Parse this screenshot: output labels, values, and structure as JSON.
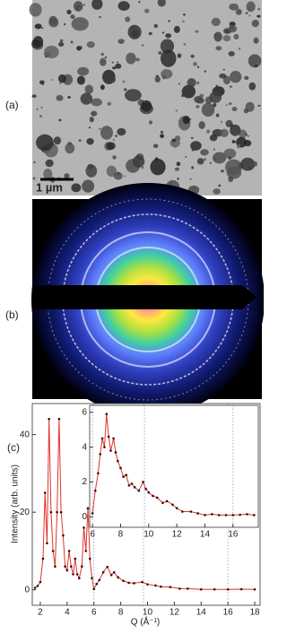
{
  "panels": {
    "a": {
      "label": "(a)",
      "scale_bar": "1 µm"
    },
    "b": {
      "label": "(b)"
    },
    "c": {
      "label": "(c)"
    }
  },
  "chart_data": {
    "type": "line",
    "x_label": "Q (Å⁻¹)",
    "y_label": "Intensity (arb. units)",
    "xlim": [
      1.4,
      18.4
    ],
    "xticks": [
      2,
      4,
      6,
      8,
      10,
      12,
      14,
      16,
      18
    ],
    "ylim": [
      -4,
      48
    ],
    "yticks": [
      0,
      20,
      40
    ],
    "color": "#e0332b",
    "marker_color": "#3a0c0c",
    "vlines": [
      6,
      9.7,
      16
    ],
    "vline_color": "#7a8fd6",
    "x": [
      1.6,
      1.8,
      2.0,
      2.2,
      2.35,
      2.5,
      2.65,
      2.8,
      2.95,
      3.1,
      3.25,
      3.4,
      3.55,
      3.7,
      3.85,
      4.0,
      4.15,
      4.3,
      4.45,
      4.6,
      4.75,
      4.9,
      5.1,
      5.25,
      5.4,
      5.55,
      5.7,
      5.85,
      6.0,
      6.2,
      6.4,
      6.7,
      7.0,
      7.3,
      7.5,
      7.8,
      8.2,
      8.6,
      9.0,
      9.6,
      10.0,
      10.6,
      11.0,
      11.7,
      12.4,
      13,
      14,
      15,
      16,
      17,
      18
    ],
    "values": [
      0.5,
      1,
      2,
      8,
      25,
      12,
      44,
      20,
      10,
      6,
      20,
      44,
      20,
      14,
      6,
      5,
      10,
      6,
      4,
      8,
      4,
      3,
      6,
      16,
      10,
      21,
      8,
      3,
      0.2,
      1.5,
      2.5,
      4.5,
      5.9,
      3.8,
      4.5,
      3.2,
      2.3,
      1.8,
      1.7,
      2.0,
      1.4,
      1.1,
      0.8,
      0.7,
      0.3,
      0.3,
      0.1,
      0.1,
      0.1,
      0.15,
      0.1
    ],
    "inset": {
      "xlim": [
        5.8,
        17.8
      ],
      "xticks": [
        6,
        8,
        10,
        12,
        14,
        16
      ],
      "ylim": [
        -0.6,
        6.4
      ],
      "yticks": [
        0,
        2,
        4,
        6
      ],
      "x": [
        6.0,
        6.2,
        6.4,
        6.55,
        6.7,
        6.85,
        7.0,
        7.15,
        7.3,
        7.5,
        7.65,
        7.8,
        8.0,
        8.2,
        8.4,
        8.6,
        8.8,
        9.0,
        9.3,
        9.6,
        9.8,
        10.0,
        10.3,
        10.6,
        11.0,
        11.3,
        11.7,
        12.0,
        12.4,
        13,
        13.5,
        14,
        14.5,
        15,
        15.5,
        16,
        16.5,
        17,
        17.5
      ],
      "values": [
        0.2,
        1.5,
        2.5,
        3.6,
        4.5,
        4.0,
        5.9,
        4.6,
        3.8,
        4.5,
        3.7,
        3.2,
        2.8,
        2.3,
        2.4,
        1.8,
        1.9,
        1.7,
        1.5,
        2.0,
        1.6,
        1.4,
        1.2,
        1.1,
        0.8,
        0.9,
        0.7,
        0.5,
        0.3,
        0.3,
        0.2,
        0.1,
        0.15,
        0.1,
        0.1,
        0.1,
        0.12,
        0.15,
        0.1
      ]
    }
  }
}
